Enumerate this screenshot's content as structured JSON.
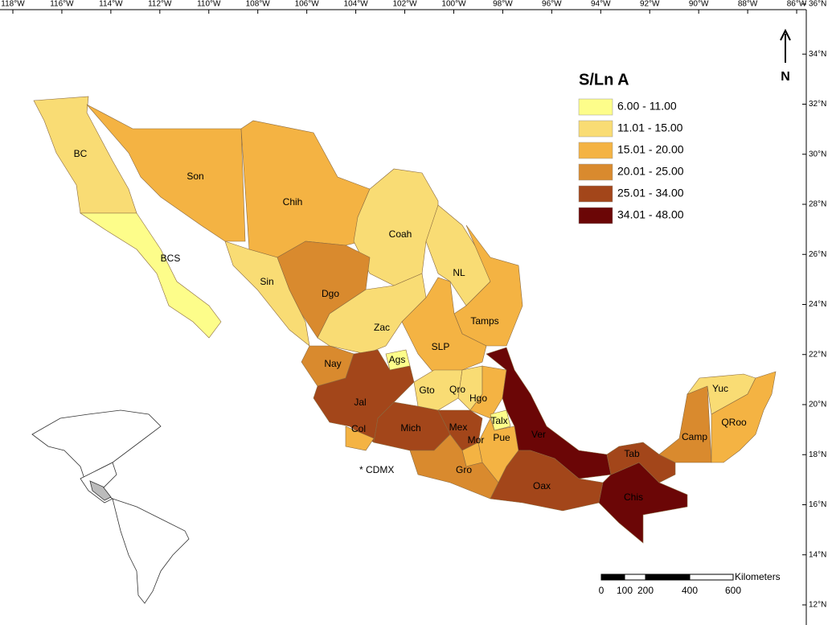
{
  "map": {
    "legend": {
      "title": "S/Ln A",
      "items": [
        {
          "label": "6.00 - 11.00",
          "color": "#fdfd8a"
        },
        {
          "label": "11.01 - 15.00",
          "color": "#f9dc74"
        },
        {
          "label": "15.01 - 20.00",
          "color": "#f4b343"
        },
        {
          "label": "20.01 - 25.00",
          "color": "#d98a2e"
        },
        {
          "label": "25.01 - 34.00",
          "color": "#a3461a"
        },
        {
          "label": "34.01 - 48.00",
          "color": "#6b0606"
        }
      ]
    },
    "states": [
      {
        "name": "BC",
        "color": "#f9dc74"
      },
      {
        "name": "BCS",
        "color": "#fdfd8a"
      },
      {
        "name": "Son",
        "color": "#f4b343"
      },
      {
        "name": "Chih",
        "color": "#f4b343"
      },
      {
        "name": "Coah",
        "color": "#f9dc74"
      },
      {
        "name": "NL",
        "color": "#f9dc74"
      },
      {
        "name": "Tamps",
        "color": "#f4b343"
      },
      {
        "name": "Sin",
        "color": "#f9dc74"
      },
      {
        "name": "Dgo",
        "color": "#d98a2e"
      },
      {
        "name": "Zac",
        "color": "#f9dc74"
      },
      {
        "name": "SLP",
        "color": "#f4b343"
      },
      {
        "name": "Nay",
        "color": "#d98a2e"
      },
      {
        "name": "Ags",
        "color": "#fdfd8a"
      },
      {
        "name": "Jal",
        "color": "#a3461a"
      },
      {
        "name": "Col",
        "color": "#f4b343"
      },
      {
        "name": "Mich",
        "color": "#a3461a"
      },
      {
        "name": "Gto",
        "color": "#f9dc74"
      },
      {
        "name": "Qro",
        "color": "#f9dc74"
      },
      {
        "name": "Hgo",
        "color": "#f4b343"
      },
      {
        "name": "Mex",
        "color": "#a3461a"
      },
      {
        "name": "Talx",
        "color": "#fdfd8a"
      },
      {
        "name": "Mor",
        "color": "#f4b343"
      },
      {
        "name": "Pue",
        "color": "#f4b343"
      },
      {
        "name": "Ver",
        "color": "#6b0606"
      },
      {
        "name": "Gro",
        "color": "#d98a2e"
      },
      {
        "name": "Oax",
        "color": "#a3461a"
      },
      {
        "name": "Chis",
        "color": "#6b0606"
      },
      {
        "name": "Tab",
        "color": "#a3461a"
      },
      {
        "name": "Camp",
        "color": "#d98a2e"
      },
      {
        "name": "Yuc",
        "color": "#f9dc74"
      },
      {
        "name": "QRoo",
        "color": "#f4b343"
      }
    ],
    "note": "* CDMX",
    "north": "N",
    "scale": {
      "unit": "Kilometers",
      "labels": [
        "0",
        "100",
        "200",
        "400",
        "600"
      ]
    },
    "lon_ticks": [
      {
        "value": -118,
        "label": "118°W"
      },
      {
        "value": -116,
        "label": "116°W"
      },
      {
        "value": -114,
        "label": "114°W"
      },
      {
        "value": -112,
        "label": "112°W"
      },
      {
        "value": -110,
        "label": "110°W"
      },
      {
        "value": -108,
        "label": "108°W"
      },
      {
        "value": -106,
        "label": "106°W"
      },
      {
        "value": -104,
        "label": "104°W"
      },
      {
        "value": -102,
        "label": "102°W"
      },
      {
        "value": -100,
        "label": "100°W"
      },
      {
        "value": -98,
        "label": "98°W"
      },
      {
        "value": -96,
        "label": "96°W"
      },
      {
        "value": -94,
        "label": "94°W"
      },
      {
        "value": -92,
        "label": "92°W"
      },
      {
        "value": -90,
        "label": "90°W"
      },
      {
        "value": -88,
        "label": "88°W"
      },
      {
        "value": -86,
        "label": "86°W"
      }
    ],
    "lat_ticks": [
      {
        "value": 36,
        "label": "36°N"
      },
      {
        "value": 34,
        "label": "34°N"
      },
      {
        "value": 32,
        "label": "32°N"
      },
      {
        "value": 30,
        "label": "30°N"
      },
      {
        "value": 28,
        "label": "28°N"
      },
      {
        "value": 26,
        "label": "26°N"
      },
      {
        "value": 24,
        "label": "24°N"
      },
      {
        "value": 22,
        "label": "22°N"
      },
      {
        "value": 20,
        "label": "20°N"
      },
      {
        "value": 18,
        "label": "18°N"
      },
      {
        "value": 16,
        "label": "16°N"
      },
      {
        "value": 14,
        "label": "14°N"
      },
      {
        "value": 12,
        "label": "12°N"
      }
    ]
  }
}
